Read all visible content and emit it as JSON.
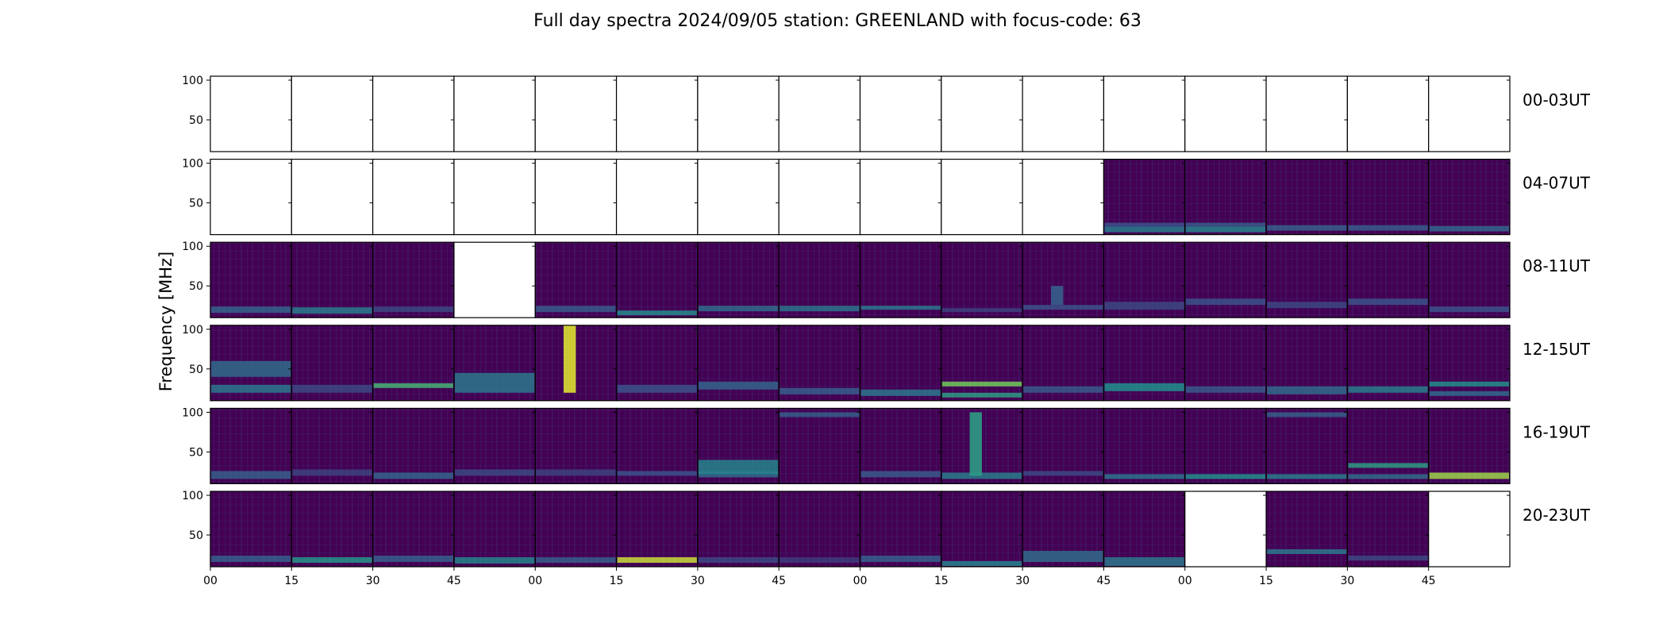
{
  "chart_data": {
    "type": "heatmap",
    "title": "Full day spectra 2024/09/05 station: GREENLAND with focus-code: 63",
    "ylabel": "Frequency [MHz]",
    "xlabel": "",
    "y_ticks": [
      "100",
      "50"
    ],
    "y_tick_values": [
      100,
      50
    ],
    "ylim": [
      10,
      105
    ],
    "x_ticks": [
      "00",
      "15",
      "30",
      "45",
      "00",
      "15",
      "30",
      "45",
      "00",
      "15",
      "30",
      "45",
      "00",
      "15",
      "30",
      "45"
    ],
    "colormap": [
      "#440154",
      "#3b528b",
      "#21918c",
      "#5ec962",
      "#fde725"
    ],
    "rows": [
      {
        "label": "00-03UT",
        "panels": [
          {
            "has_data": false
          },
          {
            "has_data": false
          },
          {
            "has_data": false
          },
          {
            "has_data": false
          },
          {
            "has_data": false
          },
          {
            "has_data": false
          },
          {
            "has_data": false
          },
          {
            "has_data": false
          },
          {
            "has_data": false
          },
          {
            "has_data": false
          },
          {
            "has_data": false
          },
          {
            "has_data": false
          },
          {
            "has_data": false
          },
          {
            "has_data": false
          },
          {
            "has_data": false
          },
          {
            "has_data": false
          }
        ]
      },
      {
        "label": "04-07UT",
        "panels": [
          {
            "has_data": false
          },
          {
            "has_data": false
          },
          {
            "has_data": false
          },
          {
            "has_data": false
          },
          {
            "has_data": false
          },
          {
            "has_data": false
          },
          {
            "has_data": false
          },
          {
            "has_data": false
          },
          {
            "has_data": false
          },
          {
            "has_data": false
          },
          {
            "has_data": false
          },
          {
            "has_data": true,
            "bands": [
              {
                "f0": 13,
                "f1": 20,
                "level": 0.42
              },
              {
                "f0": 20,
                "f1": 25,
                "level": 0.25
              }
            ]
          },
          {
            "has_data": true,
            "bands": [
              {
                "f0": 13,
                "f1": 20,
                "level": 0.45
              },
              {
                "f0": 20,
                "f1": 25,
                "level": 0.28
              }
            ]
          },
          {
            "has_data": true,
            "bands": [
              {
                "f0": 15,
                "f1": 22,
                "level": 0.3
              }
            ]
          },
          {
            "has_data": true,
            "bands": [
              {
                "f0": 15,
                "f1": 22,
                "level": 0.28
              }
            ]
          },
          {
            "has_data": true,
            "bands": [
              {
                "f0": 14,
                "f1": 21,
                "level": 0.32
              }
            ]
          }
        ]
      },
      {
        "label": "08-11UT",
        "panels": [
          {
            "has_data": true,
            "bands": [
              {
                "f0": 16,
                "f1": 24,
                "level": 0.32
              }
            ]
          },
          {
            "has_data": true,
            "bands": [
              {
                "f0": 15,
                "f1": 23,
                "level": 0.42
              }
            ]
          },
          {
            "has_data": true,
            "bands": [
              {
                "f0": 17,
                "f1": 24,
                "level": 0.22
              }
            ]
          },
          {
            "has_data": false
          },
          {
            "has_data": true,
            "bands": [
              {
                "f0": 17,
                "f1": 25,
                "level": 0.28
              }
            ]
          },
          {
            "has_data": true,
            "bands": [
              {
                "f0": 13,
                "f1": 19,
                "level": 0.48
              }
            ]
          },
          {
            "has_data": true,
            "bands": [
              {
                "f0": 18,
                "f1": 25,
                "level": 0.35
              }
            ]
          },
          {
            "has_data": true,
            "bands": [
              {
                "f0": 18,
                "f1": 25,
                "level": 0.38
              }
            ]
          },
          {
            "has_data": true,
            "bands": [
              {
                "f0": 20,
                "f1": 25,
                "level": 0.4
              }
            ]
          },
          {
            "has_data": true,
            "bands": [
              {
                "f0": 17,
                "f1": 22,
                "level": 0.2
              }
            ]
          },
          {
            "has_data": true,
            "bands": [
              {
                "f0": 20,
                "f1": 26,
                "level": 0.25
              },
              {
                "f0": 26,
                "f1": 50,
                "level": 0.3
              }
            ]
          },
          {
            "has_data": true,
            "bands": [
              {
                "f0": 20,
                "f1": 30,
                "level": 0.22
              }
            ]
          },
          {
            "has_data": true,
            "bands": [
              {
                "f0": 26,
                "f1": 34,
                "level": 0.25
              }
            ]
          },
          {
            "has_data": true,
            "bands": [
              {
                "f0": 22,
                "f1": 30,
                "level": 0.22
              }
            ]
          },
          {
            "has_data": true,
            "bands": [
              {
                "f0": 26,
                "f1": 34,
                "level": 0.25
              }
            ]
          },
          {
            "has_data": true,
            "bands": [
              {
                "f0": 17,
                "f1": 24,
                "level": 0.25
              }
            ]
          }
        ]
      },
      {
        "label": "12-15UT",
        "panels": [
          {
            "has_data": true,
            "bands": [
              {
                "f0": 20,
                "f1": 30,
                "level": 0.4
              },
              {
                "f0": 40,
                "f1": 60,
                "level": 0.35
              }
            ]
          },
          {
            "has_data": true,
            "bands": [
              {
                "f0": 20,
                "f1": 30,
                "level": 0.22
              }
            ]
          },
          {
            "has_data": true,
            "bands": [
              {
                "f0": 26,
                "f1": 32,
                "level": 0.65
              }
            ]
          },
          {
            "has_data": true,
            "bands": [
              {
                "f0": 20,
                "f1": 28,
                "level": 0.4
              },
              {
                "f0": 28,
                "f1": 45,
                "level": 0.4
              }
            ]
          },
          {
            "has_data": true,
            "bands": [
              {
                "f0": 20,
                "f1": 105,
                "level": 0.95
              }
            ]
          },
          {
            "has_data": true,
            "bands": [
              {
                "f0": 20,
                "f1": 30,
                "level": 0.25
              }
            ]
          },
          {
            "has_data": true,
            "bands": [
              {
                "f0": 24,
                "f1": 34,
                "level": 0.32
              }
            ]
          },
          {
            "has_data": true,
            "bands": [
              {
                "f0": 18,
                "f1": 26,
                "level": 0.3
              }
            ]
          },
          {
            "has_data": true,
            "bands": [
              {
                "f0": 16,
                "f1": 24,
                "level": 0.4
              }
            ]
          },
          {
            "has_data": true,
            "bands": [
              {
                "f0": 28,
                "f1": 34,
                "level": 0.78
              },
              {
                "f0": 14,
                "f1": 20,
                "level": 0.55
              }
            ]
          },
          {
            "has_data": true,
            "bands": [
              {
                "f0": 20,
                "f1": 28,
                "level": 0.28
              }
            ]
          },
          {
            "has_data": true,
            "bands": [
              {
                "f0": 22,
                "f1": 32,
                "level": 0.5
              }
            ]
          },
          {
            "has_data": true,
            "bands": [
              {
                "f0": 20,
                "f1": 28,
                "level": 0.28
              }
            ]
          },
          {
            "has_data": true,
            "bands": [
              {
                "f0": 18,
                "f1": 28,
                "level": 0.35
              }
            ]
          },
          {
            "has_data": true,
            "bands": [
              {
                "f0": 20,
                "f1": 28,
                "level": 0.42
              }
            ]
          },
          {
            "has_data": true,
            "bands": [
              {
                "f0": 28,
                "f1": 34,
                "level": 0.5
              },
              {
                "f0": 16,
                "f1": 22,
                "level": 0.35
              }
            ]
          }
        ]
      },
      {
        "label": "16-19UT",
        "panels": [
          {
            "has_data": true,
            "bands": [
              {
                "f0": 16,
                "f1": 26,
                "level": 0.3
              }
            ]
          },
          {
            "has_data": true,
            "bands": [
              {
                "f0": 20,
                "f1": 28,
                "level": 0.2
              }
            ]
          },
          {
            "has_data": true,
            "bands": [
              {
                "f0": 16,
                "f1": 24,
                "level": 0.32
              }
            ]
          },
          {
            "has_data": true,
            "bands": [
              {
                "f0": 20,
                "f1": 28,
                "level": 0.22
              }
            ]
          },
          {
            "has_data": true,
            "bands": [
              {
                "f0": 20,
                "f1": 28,
                "level": 0.2
              }
            ]
          },
          {
            "has_data": true,
            "bands": [
              {
                "f0": 20,
                "f1": 26,
                "level": 0.25
              }
            ]
          },
          {
            "has_data": true,
            "bands": [
              {
                "f0": 18,
                "f1": 26,
                "level": 0.35
              },
              {
                "f0": 22,
                "f1": 40,
                "level": 0.45
              }
            ]
          },
          {
            "has_data": true,
            "bands": [
              {
                "f0": 94,
                "f1": 100,
                "level": 0.3
              }
            ]
          },
          {
            "has_data": true,
            "bands": [
              {
                "f0": 18,
                "f1": 26,
                "level": 0.28
              }
            ]
          },
          {
            "has_data": true,
            "bands": [
              {
                "f0": 16,
                "f1": 24,
                "level": 0.42
              },
              {
                "f0": 20,
                "f1": 100,
                "level": 0.55
              }
            ]
          },
          {
            "has_data": true,
            "bands": [
              {
                "f0": 20,
                "f1": 26,
                "level": 0.22
              }
            ]
          },
          {
            "has_data": true,
            "bands": [
              {
                "f0": 16,
                "f1": 22,
                "level": 0.38
              }
            ]
          },
          {
            "has_data": true,
            "bands": [
              {
                "f0": 16,
                "f1": 22,
                "level": 0.5
              }
            ]
          },
          {
            "has_data": true,
            "bands": [
              {
                "f0": 94,
                "f1": 100,
                "level": 0.3
              },
              {
                "f0": 16,
                "f1": 22,
                "level": 0.42
              }
            ]
          },
          {
            "has_data": true,
            "bands": [
              {
                "f0": 30,
                "f1": 36,
                "level": 0.55
              },
              {
                "f0": 16,
                "f1": 22,
                "level": 0.35
              }
            ]
          },
          {
            "has_data": true,
            "bands": [
              {
                "f0": 16,
                "f1": 24,
                "level": 0.85
              }
            ]
          }
        ]
      },
      {
        "label": "20-23UT",
        "panels": [
          {
            "has_data": true,
            "bands": [
              {
                "f0": 16,
                "f1": 24,
                "level": 0.3
              }
            ]
          },
          {
            "has_data": true,
            "bands": [
              {
                "f0": 15,
                "f1": 22,
                "level": 0.52
              }
            ]
          },
          {
            "has_data": true,
            "bands": [
              {
                "f0": 16,
                "f1": 24,
                "level": 0.3
              }
            ]
          },
          {
            "has_data": true,
            "bands": [
              {
                "f0": 14,
                "f1": 22,
                "level": 0.45
              }
            ]
          },
          {
            "has_data": true,
            "bands": [
              {
                "f0": 15,
                "f1": 22,
                "level": 0.3
              }
            ]
          },
          {
            "has_data": true,
            "bands": [
              {
                "f0": 15,
                "f1": 22,
                "level": 0.92
              }
            ]
          },
          {
            "has_data": true,
            "bands": [
              {
                "f0": 15,
                "f1": 22,
                "level": 0.22
              }
            ]
          },
          {
            "has_data": true,
            "bands": [
              {
                "f0": 15,
                "f1": 22,
                "level": 0.18
              }
            ]
          },
          {
            "has_data": true,
            "bands": [
              {
                "f0": 16,
                "f1": 24,
                "level": 0.3
              }
            ]
          },
          {
            "has_data": true,
            "bands": [
              {
                "f0": 11,
                "f1": 17,
                "level": 0.45
              }
            ]
          },
          {
            "has_data": true,
            "bands": [
              {
                "f0": 16,
                "f1": 30,
                "level": 0.35
              }
            ]
          },
          {
            "has_data": true,
            "bands": [
              {
                "f0": 11,
                "f1": 22,
                "level": 0.4
              }
            ]
          },
          {
            "has_data": false
          },
          {
            "has_data": true,
            "bands": [
              {
                "f0": 26,
                "f1": 32,
                "level": 0.4
              }
            ]
          },
          {
            "has_data": true,
            "bands": [
              {
                "f0": 18,
                "f1": 24,
                "level": 0.22
              }
            ]
          },
          {
            "has_data": false
          }
        ]
      }
    ]
  }
}
